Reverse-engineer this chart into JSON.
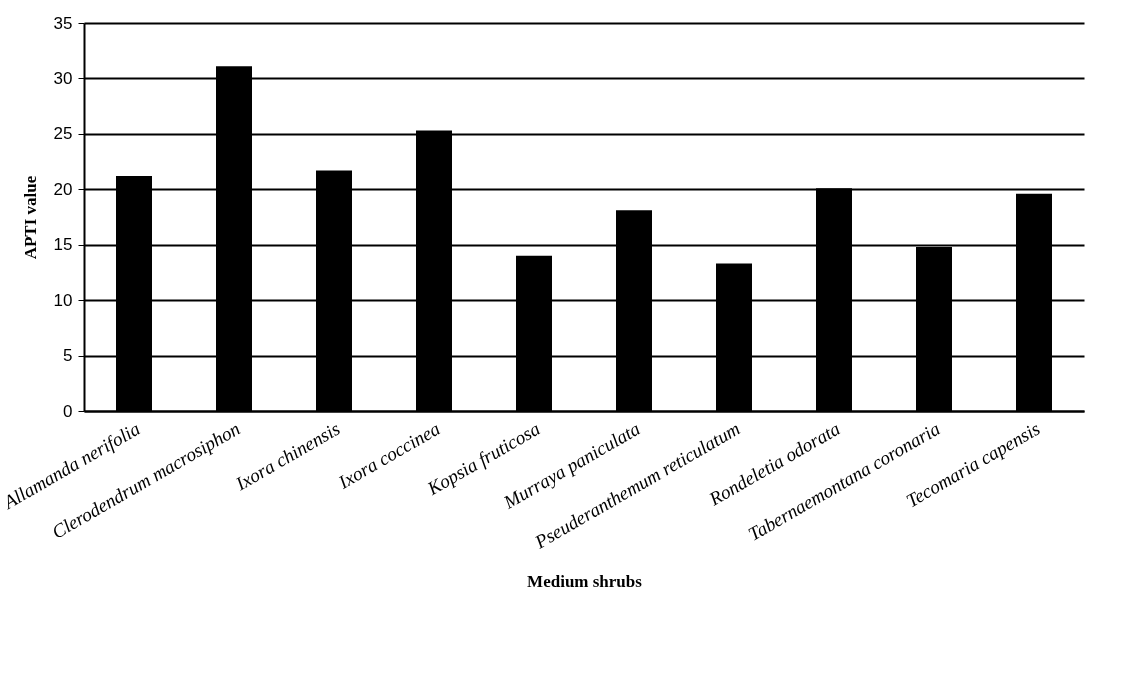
{
  "chart_data": {
    "type": "bar",
    "xlabel": "Medium shrubs",
    "ylabel": "APTI value",
    "categories": [
      "Allamanda nerifolia",
      "Clerodendrum macrosiphon",
      "Ixora chinensis",
      "Ixora coccinea",
      "Kopsia fruticosa",
      "Murraya paniculata",
      "Pseuderanthemum reticulatum",
      "Rondeletia odorata",
      "Tabernaemontana coronaria",
      "Tecomaria capensis"
    ],
    "values": [
      21.2,
      31.1,
      21.7,
      25.3,
      14.0,
      18.1,
      13.3,
      20.1,
      14.8,
      19.6
    ],
    "color": "#000000",
    "ylim": [
      0,
      35
    ],
    "yticks": [
      0,
      5,
      10,
      15,
      20,
      25,
      30,
      35
    ],
    "grid": "y"
  }
}
